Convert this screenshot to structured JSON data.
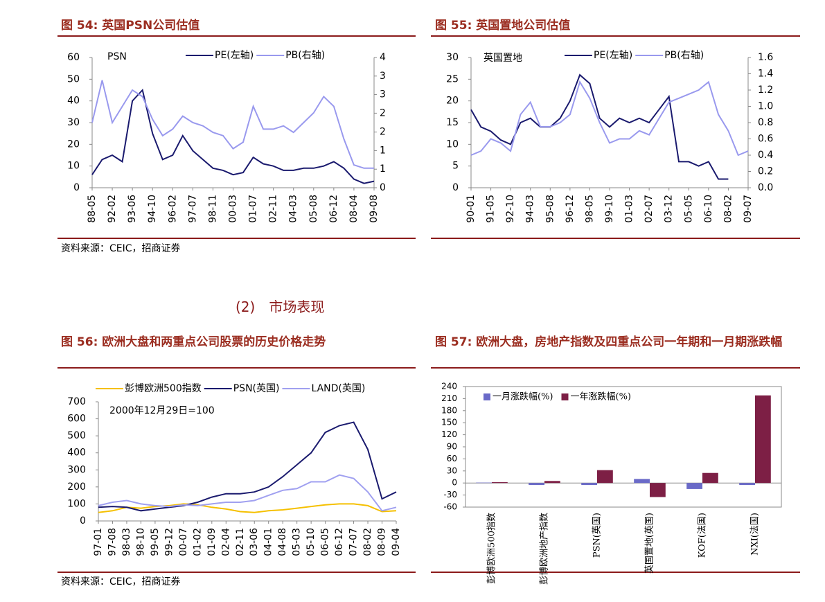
{
  "chart_data": [
    {
      "type": "line",
      "title": "图 54: 英国PSN公司估值",
      "annotation": "PSN",
      "categories": [
        "88-05",
        null,
        "92-02",
        null,
        "93-06",
        null,
        "94-10",
        null,
        "96-02",
        null,
        "97-07",
        null,
        "98-11",
        null,
        "00-03",
        null,
        "01-07",
        null,
        "02-11",
        null,
        "04-03",
        null,
        "05-08",
        null,
        "06-12",
        null,
        "08-04",
        null,
        "09-08"
      ],
      "series": [
        {
          "name": "PE(左轴)",
          "color": "#1a1a6e",
          "values": [
            6,
            13,
            15,
            12,
            40,
            45,
            25,
            13,
            15,
            24,
            17,
            13,
            9,
            8,
            6,
            7,
            14,
            11,
            10,
            8,
            8,
            9,
            9,
            10,
            12,
            9,
            4,
            2,
            3
          ]
        },
        {
          "name": "PB(右轴)",
          "color": "#9999ee",
          "axis": "y2",
          "values": [
            2.0,
            3.3,
            2.0,
            2.5,
            3.0,
            2.8,
            2.1,
            1.6,
            1.8,
            2.2,
            2.0,
            1.9,
            1.7,
            1.6,
            1.2,
            1.4,
            2.5,
            1.8,
            1.8,
            1.9,
            1.7,
            2.0,
            2.3,
            2.8,
            2.5,
            1.5,
            0.7,
            0.6,
            0.6
          ]
        }
      ],
      "ylim": [
        0,
        60
      ],
      "yticks": [
        0,
        10,
        20,
        30,
        40,
        50,
        60
      ],
      "y2lim": [
        0,
        4
      ],
      "y2ticks": [
        0,
        {
          "value": 0.57,
          "label": "1"
        },
        {
          "value": 1.14,
          "label": "1"
        },
        {
          "value": 1.71,
          "label": "2"
        },
        {
          "value": 2.29,
          "label": "2"
        },
        {
          "value": 2.86,
          "label": "3"
        },
        {
          "value": 3.43,
          "label": "3"
        },
        4
      ]
    },
    {
      "type": "line",
      "title": "图 55: 英国置地公司估值",
      "annotation": "英国置地",
      "categories": [
        "90-01",
        null,
        "91-05",
        null,
        "92-10",
        null,
        "94-03",
        null,
        "95-08",
        null,
        "96-12",
        null,
        "98-05",
        null,
        "99-10",
        null,
        "01-03",
        null,
        "02-07",
        null,
        "03-12",
        null,
        "05-05",
        null,
        "06-10",
        null,
        "08-02",
        null,
        "09-07"
      ],
      "series": [
        {
          "name": "PE(左轴)",
          "color": "#1a1a6e",
          "values": [
            18,
            14,
            13,
            11,
            10,
            15,
            16,
            14,
            14,
            16,
            20,
            26,
            24,
            16,
            14,
            16,
            15,
            16,
            15,
            18,
            21,
            6,
            6,
            5,
            6,
            2,
            2,
            null,
            null
          ]
        },
        {
          "name": "PB(右轴)",
          "color": "#9999ee",
          "axis": "y2",
          "values": [
            0.4,
            0.45,
            0.6,
            0.55,
            0.45,
            0.9,
            1.05,
            0.75,
            0.75,
            0.8,
            0.9,
            1.3,
            1.1,
            0.8,
            0.55,
            0.6,
            0.6,
            0.7,
            0.65,
            0.85,
            1.05,
            1.1,
            1.15,
            1.2,
            1.3,
            0.9,
            0.7,
            0.4,
            0.45
          ]
        }
      ],
      "ylim": [
        0,
        30
      ],
      "yticks": [
        0,
        5,
        10,
        15,
        20,
        25,
        30
      ],
      "y2lim": [
        0,
        1.6
      ],
      "y2ticks": [
        {
          "value": 0,
          "label": "0.0"
        },
        0.2,
        0.4,
        0.6,
        0.8,
        {
          "value": 1,
          "label": "1.0"
        },
        1.2,
        1.4,
        1.6
      ]
    },
    {
      "type": "line",
      "title": "图 56: 欧洲大盘和两重点公司股票的历史价格走势",
      "annotation": "2000年12月29日=100",
      "categories": [
        "97-01",
        "97-08",
        "98-03",
        "98-10",
        "99-05",
        "99-12",
        "00-07",
        "01-02",
        "01-09",
        "02-04",
        "02-11",
        "03-06",
        "04-01",
        "04-08",
        "05-03",
        "05-10",
        "06-05",
        "06-12",
        "07-07",
        "08-02",
        "08-09",
        "09-04"
      ],
      "series": [
        {
          "name": "彭博欧洲500指数",
          "color": "#f5c000",
          "values": [
            50,
            60,
            80,
            75,
            85,
            90,
            100,
            95,
            80,
            70,
            55,
            50,
            60,
            65,
            75,
            85,
            95,
            100,
            100,
            90,
            55,
            60
          ]
        },
        {
          "name": "PSN(英国)",
          "color": "#1a1a6e",
          "values": [
            80,
            85,
            80,
            60,
            70,
            80,
            90,
            110,
            140,
            160,
            160,
            170,
            200,
            260,
            330,
            400,
            520,
            560,
            580,
            420,
            130,
            170
          ]
        },
        {
          "name": "LAND(英国)",
          "color": "#a0a0f0",
          "values": [
            90,
            110,
            120,
            100,
            90,
            85,
            95,
            90,
            100,
            110,
            110,
            120,
            150,
            180,
            190,
            230,
            230,
            270,
            250,
            170,
            60,
            80
          ]
        }
      ],
      "ylim": [
        0,
        700
      ],
      "yticks": [
        0,
        100,
        200,
        300,
        400,
        500,
        600,
        700
      ]
    },
    {
      "type": "bar",
      "title": "图 57: 欧洲大盘，房地产指数及四重点公司一年期和一月期涨跌幅",
      "categories": [
        "彭博欧洲500指数",
        "彭博欧洲地产指数",
        "PSN(英国)",
        "英国置地(英国)",
        "KOF(法国)",
        "NXI(法国)"
      ],
      "series": [
        {
          "name": "一月涨跌幅(%)",
          "color": "#6a6ac8",
          "values": [
            1,
            -5,
            -5,
            10,
            -15,
            -5
          ]
        },
        {
          "name": "一年涨跌幅(%)",
          "color": "#7d1f45",
          "values": [
            2,
            5,
            32,
            -35,
            25,
            218
          ]
        }
      ],
      "ylim": [
        -60,
        240
      ],
      "yticks": [
        -60,
        -30,
        0,
        30,
        60,
        90,
        120,
        150,
        180,
        210,
        240
      ]
    }
  ],
  "section_title": "(2)　市场表现",
  "sources": [
    "资料来源：CEIC，招商证券",
    "资料来源：CEIC，招商证券"
  ]
}
